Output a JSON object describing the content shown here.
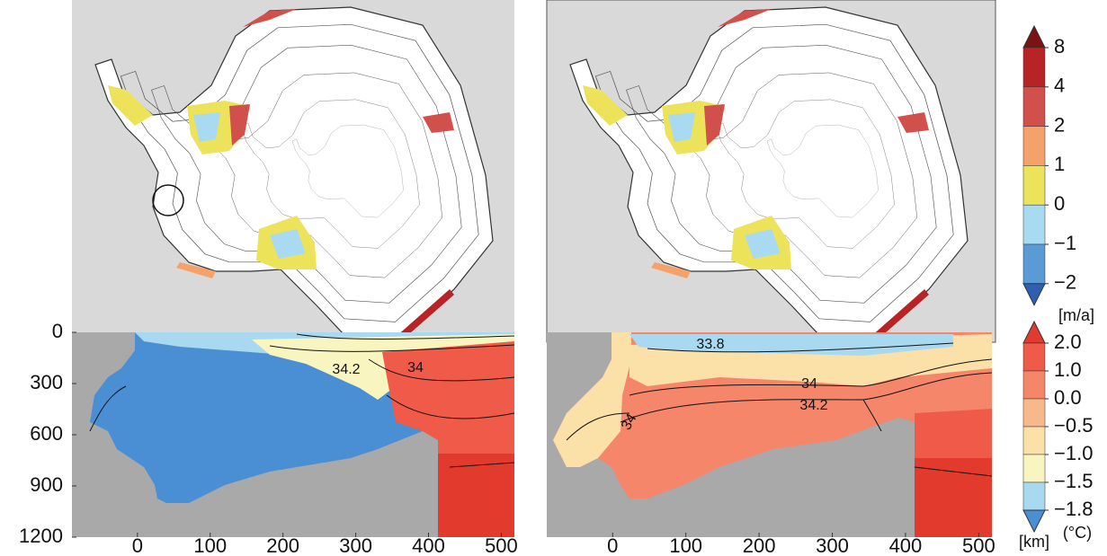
{
  "chart_data": [
    {
      "type": "section",
      "xlim": [
        -90,
        518
      ],
      "ylim": [
        1200,
        0
      ],
      "xticks": [
        0,
        100,
        200,
        300,
        400,
        500
      ],
      "yticks": [
        0,
        300,
        600,
        900,
        1200
      ],
      "annotations": [
        "34.2",
        "34"
      ]
    },
    {
      "type": "section",
      "xlim": [
        -90,
        518
      ],
      "ylim": [
        1200,
        0
      ],
      "xticks": [
        0,
        100,
        200,
        300,
        400,
        500
      ],
      "x_label": "[km]",
      "annotations": [
        "33.8",
        "34",
        "34.2",
        "34"
      ]
    }
  ],
  "colorbars": [
    {
      "ticks": [
        8,
        4,
        2,
        1,
        0,
        {
          "value": -1,
          "label": "−1"
        },
        {
          "value": -2,
          "label": "−2"
        }
      ],
      "colors": [
        "#7a1414",
        "#b82326",
        "#d2504c",
        "#f4a26a",
        "#ede35a",
        "#a8daf2",
        "#5b9bd5",
        "#2f5fb0"
      ],
      "unit": "[m/a]"
    },
    {
      "ticks": [
        {
          "value": 2,
          "label": "2.0"
        },
        {
          "value": 1,
          "label": "1.0"
        },
        {
          "value": 0,
          "label": "0.0"
        },
        {
          "value": -0.5,
          "label": "−0.5"
        },
        {
          "value": -1,
          "label": "−1.0"
        },
        {
          "value": -1.5,
          "label": "−1.5"
        },
        {
          "value": -1.8,
          "label": "−1.8"
        }
      ],
      "colors": [
        "#e23b2e",
        "#ef5b48",
        "#f5866a",
        "#f8b98a",
        "#fbe0a8",
        "#f8f5c0",
        "#a9d9f0",
        "#4a8fd4"
      ],
      "unit": "(°C)"
    }
  ]
}
